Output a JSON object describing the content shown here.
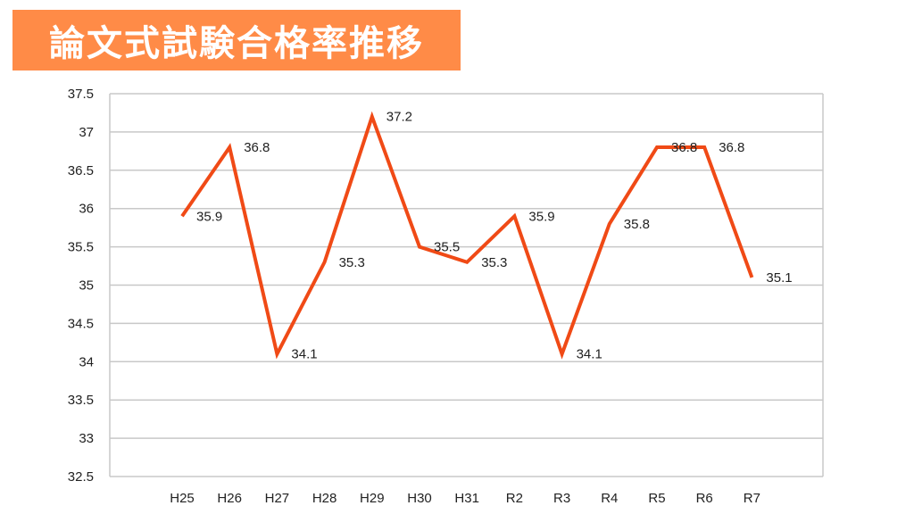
{
  "chart_data": {
    "type": "line",
    "title": "論文式試験合格率推移",
    "categories": [
      "H25",
      "H26",
      "H27",
      "H28",
      "H29",
      "H30",
      "H31",
      "R2",
      "R3",
      "R4",
      "R5",
      "R6",
      "R7"
    ],
    "series": [
      {
        "values": [
          35.9,
          36.8,
          34.1,
          35.3,
          37.2,
          35.5,
          35.3,
          35.9,
          34.1,
          35.8,
          36.8,
          36.8,
          35.1
        ]
      }
    ],
    "ylim": [
      32.5,
      37.5
    ],
    "yticks": [
      "32.5",
      "33",
      "33.5",
      "34",
      "34.5",
      "35",
      "35.5",
      "36",
      "36.5",
      "37",
      "37.5"
    ],
    "grid": true,
    "legend": "none",
    "colors": {
      "line": "#F04A16",
      "title_bg": "#FF8B47",
      "grid": "#C8C8C8"
    }
  }
}
